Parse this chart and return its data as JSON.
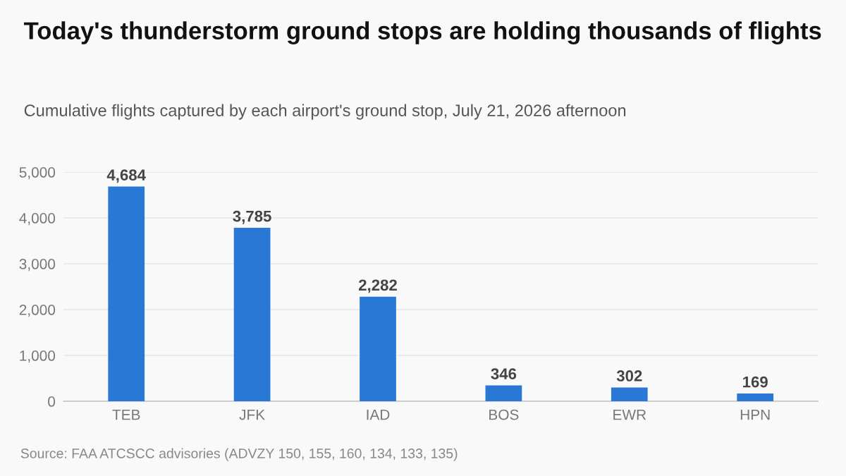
{
  "chart_data": {
    "type": "bar",
    "title": "Today's thunderstorm ground stops are holding thousands of flights",
    "subtitle": "Cumulative flights captured by each airport's ground stop, July 21, 2026 afternoon",
    "categories": [
      "TEB",
      "JFK",
      "IAD",
      "BOS",
      "EWR",
      "HPN"
    ],
    "values": [
      4684,
      3785,
      2282,
      346,
      302,
      169
    ],
    "color": "#2a78d6",
    "value_labels": [
      "4,684",
      "3,785",
      "2,282",
      "346",
      "302",
      "169"
    ],
    "ylim": [
      0,
      5000
    ],
    "yticks": [
      {
        "value": 0,
        "label": "0"
      },
      {
        "value": 1000,
        "label": "1,000"
      },
      {
        "value": 2000,
        "label": "2,000"
      },
      {
        "value": 3000,
        "label": "3,000"
      },
      {
        "value": 4000,
        "label": "4,000"
      },
      {
        "value": 5000,
        "label": "5,000"
      }
    ],
    "grid": "y",
    "legend": false,
    "annotations": [
      "Source: FAA ATCSCC advisories (ADVZY 150, 155, 160, 134, 133, 135)"
    ]
  }
}
